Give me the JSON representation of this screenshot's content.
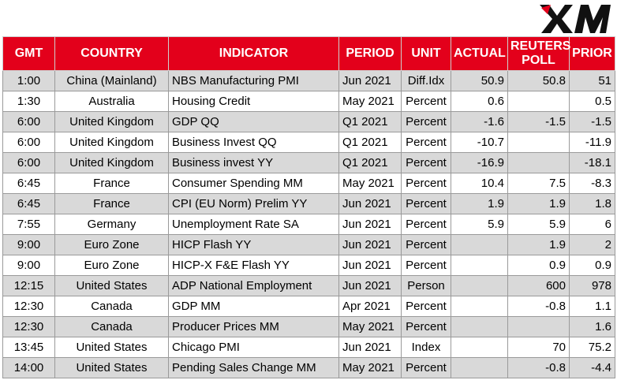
{
  "brand": {
    "logo_text": "XM",
    "accent": "#e3001b"
  },
  "columns": [
    "GMT",
    "COUNTRY",
    "INDICATOR",
    "PERIOD",
    "UNIT",
    "ACTUAL",
    "REUTERS POLL",
    "PRIOR"
  ],
  "rows": [
    [
      "1:00",
      "China (Mainland)",
      "NBS Manufacturing PMI",
      "Jun 2021",
      "Diff.Idx",
      "50.9",
      "50.8",
      "51"
    ],
    [
      "1:30",
      "Australia",
      "Housing Credit",
      "May 2021",
      "Percent",
      "0.6",
      "",
      "0.5"
    ],
    [
      "6:00",
      "United Kingdom",
      "GDP QQ",
      "Q1 2021",
      "Percent",
      "-1.6",
      "-1.5",
      "-1.5"
    ],
    [
      "6:00",
      "United Kingdom",
      "Business Invest QQ",
      "Q1 2021",
      "Percent",
      "-10.7",
      "",
      "-11.9"
    ],
    [
      "6:00",
      "United Kingdom",
      "Business invest YY",
      "Q1 2021",
      "Percent",
      "-16.9",
      "",
      "-18.1"
    ],
    [
      "6:45",
      "France",
      "Consumer Spending MM",
      "May 2021",
      "Percent",
      "10.4",
      "7.5",
      "-8.3"
    ],
    [
      "6:45",
      "France",
      "CPI (EU Norm) Prelim YY",
      "Jun 2021",
      "Percent",
      "1.9",
      "1.9",
      "1.8"
    ],
    [
      "7:55",
      "Germany",
      "Unemployment Rate SA",
      "Jun 2021",
      "Percent",
      "5.9",
      "5.9",
      "6"
    ],
    [
      "9:00",
      "Euro Zone",
      "HICP Flash YY",
      "Jun 2021",
      "Percent",
      "",
      "1.9",
      "2"
    ],
    [
      "9:00",
      "Euro Zone",
      "HICP-X F&E Flash YY",
      "Jun 2021",
      "Percent",
      "",
      "0.9",
      "0.9"
    ],
    [
      "12:15",
      "United States",
      "ADP National Employment",
      "Jun 2021",
      "Person",
      "",
      "600",
      "978"
    ],
    [
      "12:30",
      "Canada",
      "GDP MM",
      "Apr 2021",
      "Percent",
      "",
      "-0.8",
      "1.1"
    ],
    [
      "12:30",
      "Canada",
      "Producer Prices MM",
      "May 2021",
      "Percent",
      "",
      "",
      "1.6"
    ],
    [
      "13:45",
      "United States",
      "Chicago PMI",
      "Jun 2021",
      "Index",
      "",
      "70",
      "75.2"
    ],
    [
      "14:00",
      "United States",
      "Pending Sales Change MM",
      "May 2021",
      "Percent",
      "",
      "-0.8",
      "-4.4"
    ]
  ]
}
